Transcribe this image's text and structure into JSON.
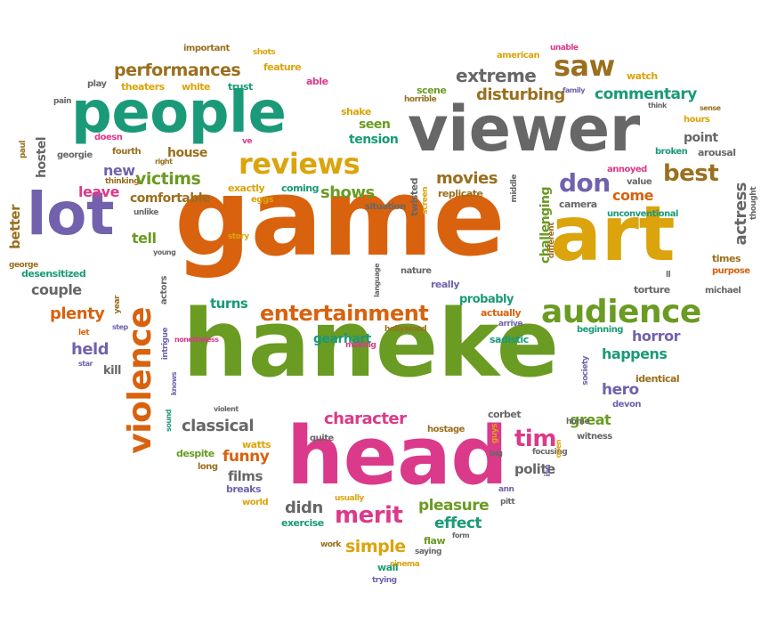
{
  "palette": {
    "orange": "#d9620e",
    "green": "#6a9b22",
    "teal": "#1a9a78",
    "gray": "#676767",
    "gold": "#dba40c",
    "purple": "#7262ad",
    "pink": "#db3a8a",
    "brown": "#9a6f1e"
  },
  "words": [
    {
      "text": "game",
      "color": "orange",
      "size": 120,
      "vertical": false
    },
    {
      "text": "haneke",
      "color": "green",
      "size": 104,
      "vertical": false
    },
    {
      "text": "head",
      "color": "pink",
      "size": 90,
      "vertical": false
    },
    {
      "text": "art",
      "color": "gold",
      "size": 86,
      "vertical": false
    },
    {
      "text": "viewer",
      "color": "gray",
      "size": 70,
      "vertical": false
    },
    {
      "text": "people",
      "color": "teal",
      "size": 64,
      "vertical": false
    },
    {
      "text": "lot",
      "color": "purple",
      "size": 66,
      "vertical": false
    },
    {
      "text": "violence",
      "color": "orange",
      "size": 36,
      "vertical": true
    },
    {
      "text": "audience",
      "color": "green",
      "size": 36,
      "vertical": false
    },
    {
      "text": "reviews",
      "color": "gold",
      "size": 32,
      "vertical": false
    },
    {
      "text": "entertainment",
      "color": "orange",
      "size": 24,
      "vertical": false
    },
    {
      "text": "saw",
      "color": "brown",
      "size": 32,
      "vertical": false
    },
    {
      "text": "performances",
      "color": "brown",
      "size": 19,
      "vertical": false
    },
    {
      "text": "extreme",
      "color": "gray",
      "size": 20,
      "vertical": false
    },
    {
      "text": "disturbing",
      "color": "brown",
      "size": 18,
      "vertical": false
    },
    {
      "text": "commentary",
      "color": "teal",
      "size": 17,
      "vertical": false
    },
    {
      "text": "best",
      "color": "brown",
      "size": 26,
      "vertical": false
    },
    {
      "text": "don",
      "color": "purple",
      "size": 28,
      "vertical": false
    },
    {
      "text": "come",
      "color": "orange",
      "size": 16,
      "vertical": false
    },
    {
      "text": "movies",
      "color": "brown",
      "size": 18,
      "vertical": false
    },
    {
      "text": "shows",
      "color": "green",
      "size": 18,
      "vertical": false
    },
    {
      "text": "victims",
      "color": "green",
      "size": 19,
      "vertical": false
    },
    {
      "text": "comfortable",
      "color": "brown",
      "size": 14,
      "vertical": false
    },
    {
      "text": "leave",
      "color": "pink",
      "size": 16,
      "vertical": false
    },
    {
      "text": "new",
      "color": "purple",
      "size": 16,
      "vertical": false
    },
    {
      "text": "house",
      "color": "brown",
      "size": 14,
      "vertical": false
    },
    {
      "text": "tension",
      "color": "teal",
      "size": 14,
      "vertical": false
    },
    {
      "text": "seen",
      "color": "green",
      "size": 14,
      "vertical": false
    },
    {
      "text": "actress",
      "color": "gray",
      "size": 18,
      "vertical": true
    },
    {
      "text": "challenging",
      "color": "green",
      "size": 14,
      "vertical": true
    },
    {
      "text": "tell",
      "color": "green",
      "size": 16,
      "vertical": false
    },
    {
      "text": "couple",
      "color": "gray",
      "size": 16,
      "vertical": false
    },
    {
      "text": "plenty",
      "color": "orange",
      "size": 18,
      "vertical": false
    },
    {
      "text": "held",
      "color": "purple",
      "size": 18,
      "vertical": false
    },
    {
      "text": "better",
      "color": "brown",
      "size": 15,
      "vertical": true
    },
    {
      "text": "hostel",
      "color": "gray",
      "size": 14,
      "vertical": true
    },
    {
      "text": "turns",
      "color": "teal",
      "size": 15,
      "vertical": false
    },
    {
      "text": "gearhart",
      "color": "teal",
      "size": 14,
      "vertical": false
    },
    {
      "text": "probably",
      "color": "teal",
      "size": 13,
      "vertical": false
    },
    {
      "text": "horror",
      "color": "purple",
      "size": 16,
      "vertical": false
    },
    {
      "text": "happens",
      "color": "teal",
      "size": 16,
      "vertical": false
    },
    {
      "text": "hero",
      "color": "purple",
      "size": 17,
      "vertical": false
    },
    {
      "text": "identical",
      "color": "brown",
      "size": 11,
      "vertical": false
    },
    {
      "text": "classical",
      "color": "gray",
      "size": 18,
      "vertical": false
    },
    {
      "text": "character",
      "color": "pink",
      "size": 18,
      "vertical": false
    },
    {
      "text": "tim",
      "color": "pink",
      "size": 26,
      "vertical": false
    },
    {
      "text": "great",
      "color": "green",
      "size": 16,
      "vertical": false
    },
    {
      "text": "funny",
      "color": "orange",
      "size": 17,
      "vertical": false
    },
    {
      "text": "films",
      "color": "gray",
      "size": 15,
      "vertical": false
    },
    {
      "text": "merit",
      "color": "pink",
      "size": 26,
      "vertical": false
    },
    {
      "text": "didn",
      "color": "gray",
      "size": 18,
      "vertical": false
    },
    {
      "text": "pleasure",
      "color": "green",
      "size": 17,
      "vertical": false
    },
    {
      "text": "effect",
      "color": "teal",
      "size": 17,
      "vertical": false
    },
    {
      "text": "simple",
      "color": "gold",
      "size": 19,
      "vertical": false
    },
    {
      "text": "polite",
      "color": "gray",
      "size": 15,
      "vertical": false
    },
    {
      "text": "kill",
      "color": "gray",
      "size": 13,
      "vertical": false
    },
    {
      "text": "watts",
      "color": "gold",
      "size": 11,
      "vertical": false
    },
    {
      "text": "despite",
      "color": "green",
      "size": 11,
      "vertical": false
    },
    {
      "text": "breaks",
      "color": "purple",
      "size": 11,
      "vertical": false
    },
    {
      "text": "exercise",
      "color": "teal",
      "size": 11,
      "vertical": false
    },
    {
      "text": "flaw",
      "color": "green",
      "size": 11,
      "vertical": false
    },
    {
      "text": "wall",
      "color": "teal",
      "size": 11,
      "vertical": false
    },
    {
      "text": "world",
      "color": "gold",
      "size": 10,
      "vertical": false
    },
    {
      "text": "long",
      "color": "brown",
      "size": 10,
      "vertical": false
    },
    {
      "text": "usually",
      "color": "gold",
      "size": 9,
      "vertical": false
    },
    {
      "text": "important",
      "color": "brown",
      "size": 10,
      "vertical": false
    },
    {
      "text": "shots",
      "color": "gold",
      "size": 9,
      "vertical": false
    },
    {
      "text": "feature",
      "color": "gold",
      "size": 11,
      "vertical": false
    },
    {
      "text": "theaters",
      "color": "gold",
      "size": 11,
      "vertical": false
    },
    {
      "text": "play",
      "color": "gray",
      "size": 10,
      "vertical": false
    },
    {
      "text": "white",
      "color": "gold",
      "size": 11,
      "vertical": false
    },
    {
      "text": "trust",
      "color": "teal",
      "size": 11,
      "vertical": false
    },
    {
      "text": "able",
      "color": "pink",
      "size": 11,
      "vertical": false
    },
    {
      "text": "pain",
      "color": "gray",
      "size": 9,
      "vertical": false
    },
    {
      "text": "shake",
      "color": "gold",
      "size": 11,
      "vertical": false
    },
    {
      "text": "american",
      "color": "gold",
      "size": 10,
      "vertical": false
    },
    {
      "text": "unable",
      "color": "pink",
      "size": 9,
      "vertical": false
    },
    {
      "text": "watch",
      "color": "gold",
      "size": 11,
      "vertical": false
    },
    {
      "text": "scene",
      "color": "green",
      "size": 11,
      "vertical": false
    },
    {
      "text": "horrible",
      "color": "brown",
      "size": 9,
      "vertical": false
    },
    {
      "text": "family",
      "color": "purple",
      "size": 8,
      "vertical": false
    },
    {
      "text": "think",
      "color": "gray",
      "size": 8,
      "vertical": false
    },
    {
      "text": "sense",
      "color": "brown",
      "size": 8,
      "vertical": false
    },
    {
      "text": "hours",
      "color": "gold",
      "size": 10,
      "vertical": false
    },
    {
      "text": "point",
      "color": "gray",
      "size": 14,
      "vertical": false
    },
    {
      "text": "broken",
      "color": "teal",
      "size": 10,
      "vertical": false
    },
    {
      "text": "arousal",
      "color": "gray",
      "size": 11,
      "vertical": false
    },
    {
      "text": "annoyed",
      "color": "pink",
      "size": 10,
      "vertical": false
    },
    {
      "text": "value",
      "color": "gray",
      "size": 10,
      "vertical": false
    },
    {
      "text": "paul",
      "color": "brown",
      "size": 9,
      "vertical": true
    },
    {
      "text": "doesn",
      "color": "pink",
      "size": 10,
      "vertical": false
    },
    {
      "text": "fourth",
      "color": "brown",
      "size": 10,
      "vertical": false
    },
    {
      "text": "right",
      "color": "brown",
      "size": 8,
      "vertical": false
    },
    {
      "text": "georgie",
      "color": "gray",
      "size": 10,
      "vertical": false
    },
    {
      "text": "thinking",
      "color": "brown",
      "size": 9,
      "vertical": false
    },
    {
      "text": "ve",
      "color": "pink",
      "size": 9,
      "vertical": false
    },
    {
      "text": "exactly",
      "color": "gold",
      "size": 11,
      "vertical": false
    },
    {
      "text": "coming",
      "color": "teal",
      "size": 11,
      "vertical": false
    },
    {
      "text": "eggs",
      "color": "gold",
      "size": 10,
      "vertical": false
    },
    {
      "text": "unlike",
      "color": "gray",
      "size": 9,
      "vertical": false
    },
    {
      "text": "twisted",
      "color": "gray",
      "size": 11,
      "vertical": true
    },
    {
      "text": "screen",
      "color": "gold",
      "size": 9,
      "vertical": true
    },
    {
      "text": "replicate",
      "color": "brown",
      "size": 11,
      "vertical": false
    },
    {
      "text": "situation",
      "color": "gray",
      "size": 10,
      "vertical": false
    },
    {
      "text": "middle",
      "color": "gray",
      "size": 9,
      "vertical": true
    },
    {
      "text": "camera",
      "color": "gray",
      "size": 11,
      "vertical": false
    },
    {
      "text": "different",
      "color": "brown",
      "size": 9,
      "vertical": true
    },
    {
      "text": "unconventional",
      "color": "teal",
      "size": 10,
      "vertical": false
    },
    {
      "text": "thought",
      "color": "gray",
      "size": 9,
      "vertical": true
    },
    {
      "text": "story",
      "color": "gold",
      "size": 9,
      "vertical": false
    },
    {
      "text": "young",
      "color": "gray",
      "size": 8,
      "vertical": false
    },
    {
      "text": "george",
      "color": "brown",
      "size": 9,
      "vertical": false
    },
    {
      "text": "desensitized",
      "color": "teal",
      "size": 11,
      "vertical": false
    },
    {
      "text": "actors",
      "color": "gray",
      "size": 10,
      "vertical": true
    },
    {
      "text": "language",
      "color": "gray",
      "size": 8,
      "vertical": true
    },
    {
      "text": "nature",
      "color": "gray",
      "size": 10,
      "vertical": false
    },
    {
      "text": "really",
      "color": "purple",
      "size": 11,
      "vertical": false
    },
    {
      "text": "times",
      "color": "brown",
      "size": 11,
      "vertical": false
    },
    {
      "text": "purpose",
      "color": "orange",
      "size": 10,
      "vertical": false
    },
    {
      "text": "ll",
      "color": "gray",
      "size": 9,
      "vertical": false
    },
    {
      "text": "torture",
      "color": "gray",
      "size": 11,
      "vertical": false
    },
    {
      "text": "michael",
      "color": "gray",
      "size": 10,
      "vertical": false
    },
    {
      "text": "year",
      "color": "brown",
      "size": 9,
      "vertical": true
    },
    {
      "text": "step",
      "color": "purple",
      "size": 8,
      "vertical": false
    },
    {
      "text": "let",
      "color": "orange",
      "size": 9,
      "vertical": false
    },
    {
      "text": "nonetheless",
      "color": "pink",
      "size": 8,
      "vertical": false
    },
    {
      "text": "intrigue",
      "color": "purple",
      "size": 9,
      "vertical": true
    },
    {
      "text": "knows",
      "color": "purple",
      "size": 8,
      "vertical": true
    },
    {
      "text": "star",
      "color": "purple",
      "size": 8,
      "vertical": false
    },
    {
      "text": "making",
      "color": "pink",
      "size": 9,
      "vertical": false
    },
    {
      "text": "hollywood",
      "color": "brown",
      "size": 9,
      "vertical": false
    },
    {
      "text": "actually",
      "color": "orange",
      "size": 11,
      "vertical": false
    },
    {
      "text": "arrive",
      "color": "purple",
      "size": 9,
      "vertical": false
    },
    {
      "text": "sadistic",
      "color": "teal",
      "size": 11,
      "vertical": false
    },
    {
      "text": "beginning",
      "color": "teal",
      "size": 10,
      "vertical": false
    },
    {
      "text": "society",
      "color": "purple",
      "size": 9,
      "vertical": true
    },
    {
      "text": "devon",
      "color": "purple",
      "size": 10,
      "vertical": false
    },
    {
      "text": "home",
      "color": "gray",
      "size": 9,
      "vertical": false
    },
    {
      "text": "witness",
      "color": "gray",
      "size": 10,
      "vertical": false
    },
    {
      "text": "violent",
      "color": "gray",
      "size": 8,
      "vertical": false
    },
    {
      "text": "sound",
      "color": "teal",
      "size": 8,
      "vertical": true
    },
    {
      "text": "quite",
      "color": "gray",
      "size": 10,
      "vertical": false
    },
    {
      "text": "hostage",
      "color": "brown",
      "size": 10,
      "vertical": false
    },
    {
      "text": "corbet",
      "color": "gray",
      "size": 11,
      "vertical": false
    },
    {
      "text": "guys",
      "color": "gold",
      "size": 9,
      "vertical": true
    },
    {
      "text": "big",
      "color": "gray",
      "size": 9,
      "vertical": false
    },
    {
      "text": "focusing",
      "color": "gray",
      "size": 9,
      "vertical": false
    },
    {
      "text": "open",
      "color": "gold",
      "size": 8,
      "vertical": true
    },
    {
      "text": "isn",
      "color": "purple",
      "size": 9,
      "vertical": true
    },
    {
      "text": "ann",
      "color": "purple",
      "size": 9,
      "vertical": false
    },
    {
      "text": "pitt",
      "color": "gray",
      "size": 9,
      "vertical": false
    },
    {
      "text": "form",
      "color": "gray",
      "size": 8,
      "vertical": false
    },
    {
      "text": "saying",
      "color": "gray",
      "size": 9,
      "vertical": false
    },
    {
      "text": "work",
      "color": "brown",
      "size": 9,
      "vertical": false
    },
    {
      "text": "cinema",
      "color": "gold",
      "size": 9,
      "vertical": false
    },
    {
      "text": "trying",
      "color": "purple",
      "size": 9,
      "vertical": false
    }
  ]
}
